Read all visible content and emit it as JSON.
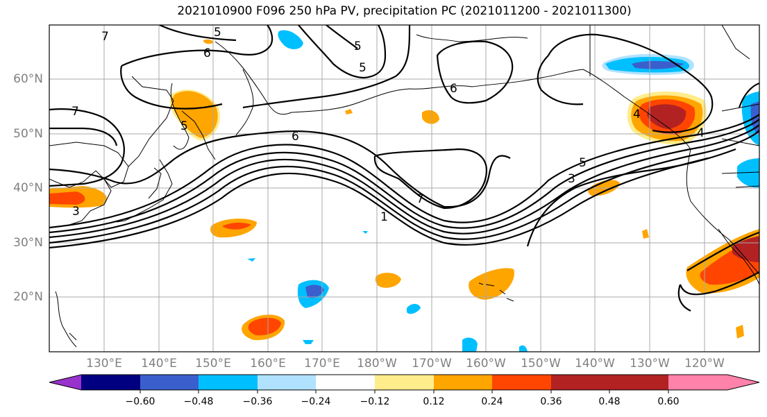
{
  "title": "2021010900 F096 250 hPa PV, precipitation PC (2021011200 - 2021011300)",
  "lat_labels": [
    "60°N",
    "50°N",
    "40°N",
    "30°N",
    "20°N"
  ],
  "lon_labels": [
    "130°E",
    "140°E",
    "150°E",
    "160°E",
    "170°E",
    "180°W",
    "170°W",
    "160°W",
    "150°W",
    "140°W",
    "130°W",
    "120°W"
  ],
  "colorbar": {
    "ticks": [
      "−0.60",
      "−0.48",
      "−0.36",
      "−0.24",
      "−0.12",
      "0.12",
      "0.24",
      "0.36",
      "0.48",
      "0.60"
    ],
    "colors": [
      "#9932cc",
      "#000080",
      "#3a5fcd",
      "#00bfff",
      "#b0e2ff",
      "#ffffff",
      "#ffec8b",
      "#ffa500",
      "#ff4500",
      "#b22222",
      "#ff82ab"
    ]
  },
  "contour_labels": [
    "7",
    "5",
    "6",
    "7",
    "5",
    "6",
    "5",
    "6",
    "4",
    "4",
    "5",
    "3",
    "7",
    "1",
    "3",
    "5"
  ]
}
